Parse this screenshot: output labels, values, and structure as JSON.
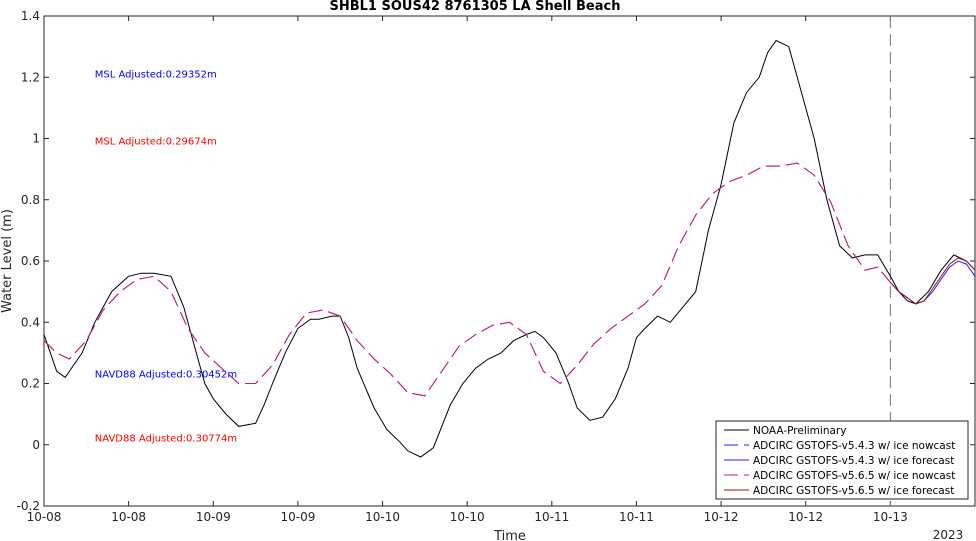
{
  "chart_data": {
    "type": "line",
    "title": "SHBL1 SOUS42 8761305 LA Shell Beach",
    "xlabel": "Time",
    "ylabel": "Water Level (m)",
    "xlim": [
      0,
      11
    ],
    "ylim": [
      -0.2,
      1.4
    ],
    "xticks": [
      0,
      1,
      2,
      3,
      4,
      5,
      6,
      7,
      8,
      9,
      10
    ],
    "xtick_labels": [
      "10-08",
      "10-08",
      "10-09",
      "10-09",
      "10-10",
      "10-10",
      "10-11",
      "10-11",
      "10-12",
      "10-12",
      "10-13"
    ],
    "x_year_label": "2023",
    "yticks": [
      -0.2,
      0,
      0.2,
      0.4,
      0.6,
      0.8,
      1.0,
      1.2,
      1.4
    ],
    "ytick_labels": [
      "-0.2",
      "0",
      "0.2",
      "0.4",
      "0.6",
      "0.8",
      "1",
      "1.2",
      "1.4"
    ],
    "grid": false,
    "legend_position": "bottom-right",
    "forecast_start_x": 10.0,
    "annotations": [
      {
        "text": "MSL Adjusted:0.29352m",
        "color": "#0000ff",
        "x": 0.6,
        "y": 1.2
      },
      {
        "text": "MSL Adjusted:0.29674m",
        "color": "#ff0000",
        "x": 0.6,
        "y": 0.98
      },
      {
        "text": "NAVD88 Adjusted:0.30452m",
        "color": "#0000ff",
        "x": 0.6,
        "y": 0.22
      },
      {
        "text": "NAVD88 Adjusted:0.30774m",
        "color": "#ff0000",
        "x": 0.6,
        "y": 0.01
      }
    ],
    "series": [
      {
        "name": "NOAA-Preliminary",
        "color": "#000000",
        "dash": "solid",
        "x": [
          0,
          0.05,
          0.15,
          0.25,
          0.35,
          0.45,
          0.6,
          0.8,
          1.0,
          1.15,
          1.3,
          1.5,
          1.65,
          1.8,
          1.9,
          2.0,
          2.15,
          2.3,
          2.5,
          2.6,
          2.7,
          2.85,
          3.0,
          3.15,
          3.25,
          3.4,
          3.5,
          3.6,
          3.7,
          3.9,
          4.05,
          4.2,
          4.3,
          4.45,
          4.6,
          4.8,
          4.95,
          5.1,
          5.25,
          5.4,
          5.55,
          5.7,
          5.8,
          5.9,
          6.05,
          6.2,
          6.3,
          6.45,
          6.6,
          6.75,
          6.9,
          7.0,
          7.1,
          7.25,
          7.4,
          7.55,
          7.7,
          7.85,
          8.0,
          8.15,
          8.3,
          8.45,
          8.55,
          8.65,
          8.8,
          8.95,
          9.1,
          9.25,
          9.4,
          9.55,
          9.7,
          9.85,
          10.0,
          10.1,
          10.2,
          10.3,
          10.45,
          10.6,
          10.75,
          10.9,
          11.0
        ],
        "y": [
          0.36,
          0.32,
          0.24,
          0.22,
          0.26,
          0.3,
          0.4,
          0.5,
          0.55,
          0.56,
          0.56,
          0.55,
          0.45,
          0.3,
          0.2,
          0.15,
          0.1,
          0.06,
          0.07,
          0.13,
          0.2,
          0.3,
          0.38,
          0.41,
          0.41,
          0.42,
          0.42,
          0.35,
          0.25,
          0.12,
          0.05,
          0.01,
          -0.02,
          -0.04,
          -0.01,
          0.13,
          0.2,
          0.25,
          0.28,
          0.3,
          0.34,
          0.36,
          0.37,
          0.35,
          0.3,
          0.2,
          0.12,
          0.08,
          0.09,
          0.15,
          0.25,
          0.35,
          0.38,
          0.42,
          0.4,
          0.45,
          0.5,
          0.7,
          0.85,
          1.05,
          1.15,
          1.2,
          1.28,
          1.32,
          1.3,
          1.15,
          1.0,
          0.8,
          0.65,
          0.61,
          0.62,
          0.62,
          0.55,
          0.5,
          0.47,
          0.46,
          0.5,
          0.57,
          0.62,
          0.6,
          0.57
        ]
      },
      {
        "name": "ADCIRC GSTOFS-v5.4.3 w/ ice nowcast",
        "color": "#2020ff",
        "dash": "long-dash",
        "x": [
          0,
          0.15,
          0.3,
          0.5,
          0.7,
          0.9,
          1.1,
          1.3,
          1.5,
          1.7,
          1.9,
          2.1,
          2.3,
          2.5,
          2.7,
          2.9,
          3.1,
          3.3,
          3.5,
          3.7,
          3.9,
          4.1,
          4.3,
          4.5,
          4.7,
          4.9,
          5.1,
          5.3,
          5.5,
          5.7,
          5.9,
          6.1,
          6.3,
          6.5,
          6.7,
          6.9,
          7.1,
          7.3,
          7.5,
          7.7,
          7.9,
          8.1,
          8.3,
          8.5,
          8.7,
          8.9,
          9.1,
          9.3,
          9.5,
          9.7,
          9.85,
          10.0
        ],
        "y": [
          0.34,
          0.3,
          0.28,
          0.34,
          0.44,
          0.5,
          0.54,
          0.55,
          0.5,
          0.38,
          0.3,
          0.25,
          0.2,
          0.2,
          0.26,
          0.36,
          0.43,
          0.44,
          0.42,
          0.34,
          0.28,
          0.23,
          0.17,
          0.16,
          0.24,
          0.32,
          0.36,
          0.39,
          0.4,
          0.36,
          0.24,
          0.2,
          0.26,
          0.33,
          0.38,
          0.42,
          0.46,
          0.52,
          0.65,
          0.75,
          0.82,
          0.86,
          0.88,
          0.91,
          0.91,
          0.92,
          0.88,
          0.79,
          0.65,
          0.57,
          0.58,
          0.53
        ]
      },
      {
        "name": "ADCIRC GSTOFS-v5.4.3 w/ ice forecast",
        "color": "#2020ff",
        "dash": "solid",
        "x": [
          10.0,
          10.1,
          10.2,
          10.3,
          10.4,
          10.5,
          10.6,
          10.7,
          10.8,
          10.9,
          11.0
        ],
        "y": [
          0.53,
          0.5,
          0.48,
          0.46,
          0.47,
          0.5,
          0.54,
          0.58,
          0.6,
          0.59,
          0.55
        ]
      },
      {
        "name": "ADCIRC GSTOFS-v5.6.5 w/ ice nowcast",
        "color": "#cc1f6e",
        "dash": "long-dash",
        "x": [
          0,
          0.15,
          0.3,
          0.5,
          0.7,
          0.9,
          1.1,
          1.3,
          1.5,
          1.7,
          1.9,
          2.1,
          2.3,
          2.5,
          2.7,
          2.9,
          3.1,
          3.3,
          3.5,
          3.7,
          3.9,
          4.1,
          4.3,
          4.5,
          4.7,
          4.9,
          5.1,
          5.3,
          5.5,
          5.7,
          5.9,
          6.1,
          6.3,
          6.5,
          6.7,
          6.9,
          7.1,
          7.3,
          7.5,
          7.7,
          7.9,
          8.1,
          8.3,
          8.5,
          8.7,
          8.9,
          9.1,
          9.3,
          9.5,
          9.7,
          9.85,
          10.0
        ],
        "y": [
          0.34,
          0.3,
          0.28,
          0.34,
          0.44,
          0.5,
          0.54,
          0.55,
          0.5,
          0.38,
          0.3,
          0.25,
          0.2,
          0.2,
          0.26,
          0.36,
          0.43,
          0.44,
          0.42,
          0.34,
          0.28,
          0.23,
          0.17,
          0.16,
          0.24,
          0.32,
          0.36,
          0.39,
          0.4,
          0.36,
          0.24,
          0.2,
          0.26,
          0.33,
          0.38,
          0.42,
          0.46,
          0.52,
          0.65,
          0.75,
          0.82,
          0.86,
          0.88,
          0.91,
          0.91,
          0.92,
          0.88,
          0.79,
          0.65,
          0.57,
          0.58,
          0.53
        ]
      },
      {
        "name": "ADCIRC GSTOFS-v5.6.5 w/ ice forecast",
        "color": "#8b1a1a",
        "dash": "solid",
        "x": [
          10.0,
          10.1,
          10.2,
          10.3,
          10.4,
          10.5,
          10.6,
          10.7,
          10.8,
          10.9,
          11.0
        ],
        "y": [
          0.53,
          0.5,
          0.48,
          0.46,
          0.47,
          0.51,
          0.55,
          0.59,
          0.61,
          0.6,
          0.57
        ]
      }
    ]
  }
}
